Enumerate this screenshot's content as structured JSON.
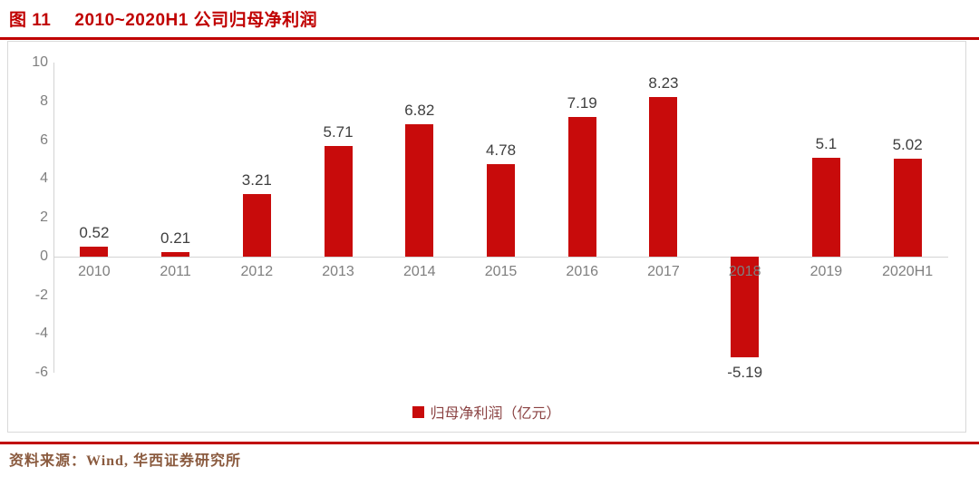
{
  "header": {
    "figure_label": "图 11",
    "title": "2010~2020H1 公司归母净利润"
  },
  "footer": {
    "source": "资料来源：Wind, 华西证券研究所"
  },
  "chart_data": {
    "type": "bar",
    "title": "图 11 2010~2020H1 公司归母净利润",
    "categories": [
      "2010",
      "2011",
      "2012",
      "2013",
      "2014",
      "2015",
      "2016",
      "2017",
      "2018",
      "2019",
      "2020H1"
    ],
    "values": [
      0.52,
      0.21,
      3.21,
      5.71,
      6.82,
      4.78,
      7.19,
      8.23,
      -5.19,
      5.1,
      5.02
    ],
    "value_labels": [
      "0.52",
      "0.21",
      "3.21",
      "5.71",
      "6.82",
      "4.78",
      "7.19",
      "8.23",
      "-5.19",
      "5.1",
      "5.02"
    ],
    "legend": "归母净利润（亿元）",
    "xlabel": "",
    "ylabel": "",
    "ylim": [
      -6,
      10
    ],
    "ytick_step": 2,
    "grid": false,
    "legend_position": "bottom-center",
    "bar_color": "#c80b0b"
  },
  "colors": {
    "accent_red": "#c00000",
    "bar_red": "#c80b0b",
    "axis_gray": "#d3d3d3",
    "tick_label_gray": "#7f7f7f",
    "value_label_dark": "#3f3f3f",
    "legend_text": "#8b4343",
    "source_text": "#8a5a3e"
  }
}
